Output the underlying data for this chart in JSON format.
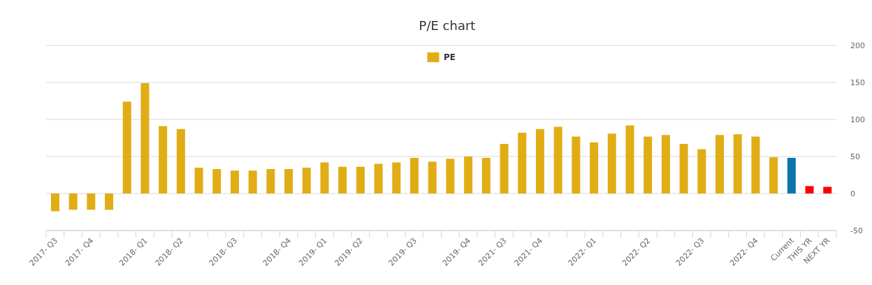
{
  "chart_data": {
    "type": "bar",
    "title": "P/E chart",
    "categories": [
      "2017- Q3",
      null,
      "2017- Q4",
      null,
      null,
      "2018- Q1",
      null,
      "2018- Q2",
      null,
      null,
      "2018- Q3",
      null,
      null,
      "2018- Q4",
      null,
      "2019- Q1",
      null,
      "2019- Q2",
      null,
      null,
      "2019- Q3",
      null,
      null,
      "2019- Q4",
      null,
      "2021- Q3",
      null,
      "2021- Q4",
      null,
      null,
      "2022- Q1",
      null,
      null,
      "2022- Q2",
      null,
      null,
      "2022- Q3",
      null,
      null,
      "2022- Q4",
      null,
      "Current",
      "THIS YR",
      "NEXT YR"
    ],
    "series": [
      {
        "name": "PE",
        "color": "#e1ad15",
        "values": [
          -24,
          -22,
          -22,
          -22,
          124,
          149,
          91,
          87,
          35,
          33,
          31,
          31,
          33,
          33,
          35,
          42,
          36,
          36,
          40,
          42,
          48,
          43,
          47,
          50,
          48,
          67,
          82,
          87,
          90,
          77,
          69,
          81,
          92,
          77,
          79,
          67,
          60,
          79,
          80,
          77,
          49,
          48,
          10,
          9
        ],
        "colors": [
          "#e1ad15",
          "#e1ad15",
          "#e1ad15",
          "#e1ad15",
          "#e1ad15",
          "#e1ad15",
          "#e1ad15",
          "#e1ad15",
          "#e1ad15",
          "#e1ad15",
          "#e1ad15",
          "#e1ad15",
          "#e1ad15",
          "#e1ad15",
          "#e1ad15",
          "#e1ad15",
          "#e1ad15",
          "#e1ad15",
          "#e1ad15",
          "#e1ad15",
          "#e1ad15",
          "#e1ad15",
          "#e1ad15",
          "#e1ad15",
          "#e1ad15",
          "#e1ad15",
          "#e1ad15",
          "#e1ad15",
          "#e1ad15",
          "#e1ad15",
          "#e1ad15",
          "#e1ad15",
          "#e1ad15",
          "#e1ad15",
          "#e1ad15",
          "#e1ad15",
          "#e1ad15",
          "#e1ad15",
          "#e1ad15",
          "#e1ad15",
          "#e1ad15",
          "#0a74ab",
          "#ff0000",
          "#ff0000"
        ]
      }
    ],
    "ylim": [
      -50,
      200
    ],
    "yticks": [
      -50,
      0,
      50,
      100,
      150,
      200
    ],
    "grid": "y",
    "legend": "top"
  }
}
